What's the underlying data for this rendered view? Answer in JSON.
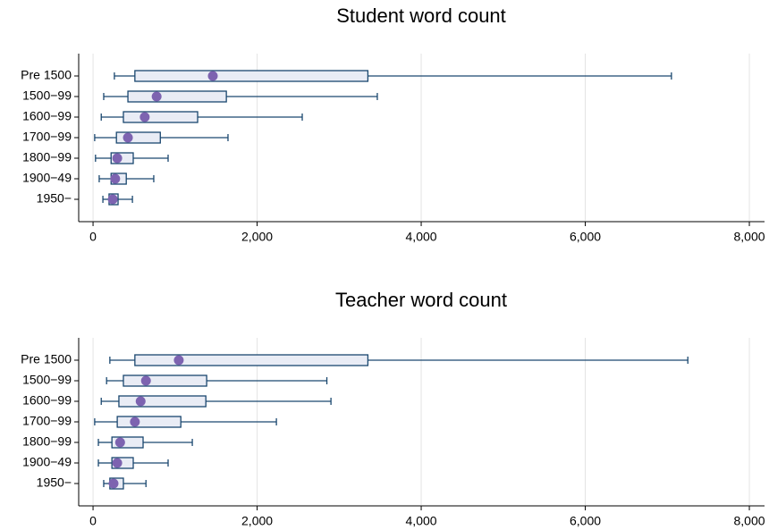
{
  "chart_data": [
    {
      "type": "box",
      "title": "Student word count",
      "categories": [
        "Pre 1500",
        "1500−99",
        "1600−99",
        "1700−99",
        "1800−99",
        "1900−49",
        "1950−"
      ],
      "boxes": [
        {
          "min": 260,
          "q1": 510,
          "median": 1460,
          "q3": 3350,
          "max": 7050
        },
        {
          "min": 130,
          "q1": 425,
          "median": 775,
          "q3": 1625,
          "max": 3465
        },
        {
          "min": 100,
          "q1": 370,
          "median": 630,
          "q3": 1275,
          "max": 2550
        },
        {
          "min": 20,
          "q1": 285,
          "median": 425,
          "q3": 820,
          "max": 1645
        },
        {
          "min": 30,
          "q1": 220,
          "median": 295,
          "q3": 490,
          "max": 915
        },
        {
          "min": 75,
          "q1": 220,
          "median": 270,
          "q3": 405,
          "max": 740
        },
        {
          "min": 120,
          "q1": 195,
          "median": 240,
          "q3": 305,
          "max": 480
        }
      ],
      "xlim": [
        -175,
        8185
      ],
      "xticks": [
        0,
        {
          "value": 2000,
          "label": "2,000"
        },
        {
          "value": 4000,
          "label": "4,000"
        },
        {
          "value": 6000,
          "label": "6,000"
        },
        {
          "value": 8000,
          "label": "8,000"
        }
      ],
      "grid": true,
      "box_color": "#1a476f",
      "box_fill": "#e9ecf5",
      "marker_color": "#7d63b0"
    },
    {
      "type": "box",
      "title": "Teacher word count",
      "categories": [
        "Pre 1500",
        "1500−99",
        "1600−99",
        "1700−99",
        "1800−99",
        "1900−49",
        "1950−"
      ],
      "boxes": [
        {
          "min": 205,
          "q1": 510,
          "median": 1045,
          "q3": 3350,
          "max": 7250
        },
        {
          "min": 165,
          "q1": 370,
          "median": 645,
          "q3": 1385,
          "max": 2850
        },
        {
          "min": 100,
          "q1": 315,
          "median": 580,
          "q3": 1375,
          "max": 2900
        },
        {
          "min": 20,
          "q1": 295,
          "median": 510,
          "q3": 1070,
          "max": 2235
        },
        {
          "min": 65,
          "q1": 230,
          "median": 330,
          "q3": 610,
          "max": 1210
        },
        {
          "min": 65,
          "q1": 230,
          "median": 295,
          "q3": 490,
          "max": 915
        },
        {
          "min": 130,
          "q1": 205,
          "median": 250,
          "q3": 370,
          "max": 645
        }
      ],
      "xlim": [
        -175,
        8185
      ],
      "xticks": [
        0,
        {
          "value": 2000,
          "label": "2,000"
        },
        {
          "value": 4000,
          "label": "4,000"
        },
        {
          "value": 6000,
          "label": "6,000"
        },
        {
          "value": 8000,
          "label": "8,000"
        }
      ],
      "grid": true,
      "box_color": "#1a476f",
      "box_fill": "#e9ecf5",
      "marker_color": "#7d63b0"
    }
  ]
}
